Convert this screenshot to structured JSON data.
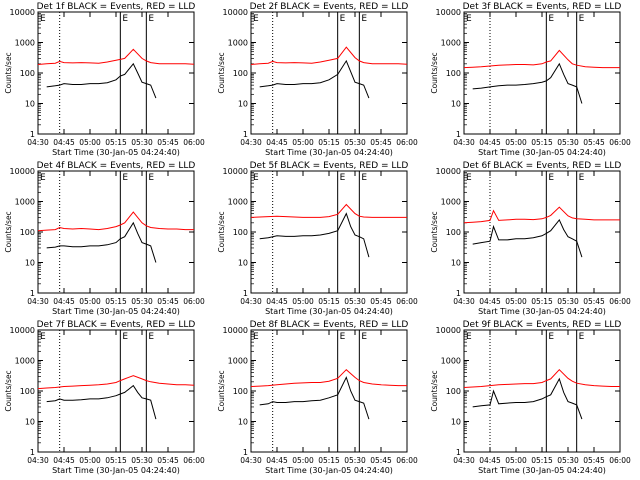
{
  "colors": {
    "events": "#000000",
    "lld": "#ff0000",
    "axis": "#000000"
  },
  "shared": {
    "ylabel": "Counts/sec",
    "xlabel": "Start Time (30-Jan-05 04:24:40)",
    "x_tick_labels": [
      "04:30",
      "04:45",
      "05:00",
      "05:15",
      "05:30",
      "05:45",
      "06:00"
    ],
    "y_tick_labels": [
      "1",
      "10",
      "100",
      "1000",
      "10000"
    ],
    "xlim_minutes_after_0430": [
      0,
      90
    ],
    "ylim": [
      1,
      10000
    ],
    "yscale": "log",
    "grid": false,
    "marker_letters": [
      "E",
      "E"
    ]
  },
  "chart_data": [
    {
      "type": "line",
      "title": "Det 1f BLACK = Events, RED = LLD",
      "vlines": {
        "dotted": 12.5,
        "solid": [
          47.5,
          62.5
        ]
      },
      "series": [
        {
          "color": "red",
          "x": [
            0,
            5,
            10,
            12.5,
            15,
            20,
            25,
            30,
            35,
            40,
            45,
            47.5,
            50,
            55,
            60,
            62.5,
            65,
            70,
            75,
            80,
            85,
            90
          ],
          "y": [
            190,
            200,
            210,
            240,
            220,
            215,
            220,
            215,
            210,
            230,
            260,
            280,
            300,
            600,
            300,
            250,
            220,
            200,
            200,
            200,
            200,
            195
          ]
        },
        {
          "color": "black",
          "x": [
            5,
            10,
            12.5,
            15,
            20,
            25,
            30,
            35,
            40,
            45,
            47.5,
            50,
            55,
            57.5,
            60,
            62.5,
            65,
            68
          ],
          "y": [
            35,
            38,
            40,
            45,
            42,
            42,
            45,
            45,
            48,
            60,
            80,
            90,
            200,
            100,
            50,
            45,
            40,
            15
          ]
        }
      ]
    },
    {
      "type": "line",
      "title": "Det 2f BLACK = Events, RED = LLD",
      "vlines": {
        "dotted": 12.5,
        "solid": [
          50,
          62.5
        ]
      },
      "series": [
        {
          "color": "red",
          "x": [
            0,
            5,
            10,
            12.5,
            15,
            20,
            25,
            30,
            35,
            40,
            45,
            50,
            55,
            60,
            62.5,
            65,
            70,
            75,
            80,
            85,
            90
          ],
          "y": [
            190,
            200,
            210,
            240,
            220,
            215,
            220,
            215,
            210,
            230,
            260,
            300,
            700,
            320,
            250,
            220,
            200,
            200,
            200,
            200,
            195
          ]
        },
        {
          "color": "black",
          "x": [
            5,
            10,
            12.5,
            15,
            20,
            25,
            30,
            35,
            40,
            45,
            50,
            55,
            57.5,
            60,
            62.5,
            65,
            68
          ],
          "y": [
            35,
            38,
            40,
            45,
            42,
            42,
            45,
            45,
            48,
            60,
            90,
            250,
            110,
            50,
            45,
            40,
            15
          ]
        }
      ]
    },
    {
      "type": "line",
      "title": "Det 3f BLACK = Events, RED = LLD",
      "vlines": {
        "dotted": 15,
        "solid": [
          47.5,
          65
        ]
      },
      "series": [
        {
          "color": "red",
          "x": [
            0,
            5,
            10,
            15,
            20,
            25,
            30,
            35,
            40,
            45,
            47.5,
            50,
            55,
            60,
            62.5,
            65,
            70,
            75,
            80,
            85,
            90
          ],
          "y": [
            150,
            155,
            160,
            170,
            180,
            185,
            190,
            190,
            185,
            200,
            230,
            250,
            550,
            270,
            200,
            180,
            160,
            155,
            150,
            150,
            150
          ]
        },
        {
          "color": "black",
          "x": [
            5,
            10,
            15,
            20,
            25,
            30,
            35,
            40,
            45,
            47.5,
            50,
            55,
            57.5,
            60,
            62.5,
            65,
            68
          ],
          "y": [
            30,
            32,
            35,
            38,
            40,
            40,
            42,
            45,
            50,
            55,
            70,
            200,
            90,
            45,
            40,
            35,
            10
          ]
        }
      ]
    },
    {
      "type": "line",
      "title": "Det 4f BLACK = Events, RED = LLD",
      "vlines": {
        "dotted": 12.5,
        "solid": [
          47.5,
          62.5
        ]
      },
      "series": [
        {
          "color": "red",
          "x": [
            0,
            5,
            10,
            12.5,
            15,
            20,
            25,
            30,
            35,
            40,
            45,
            47.5,
            50,
            55,
            60,
            62.5,
            65,
            70,
            75,
            80,
            85,
            90
          ],
          "y": [
            110,
            115,
            120,
            140,
            130,
            125,
            130,
            125,
            120,
            130,
            150,
            170,
            200,
            450,
            200,
            160,
            140,
            130,
            125,
            125,
            120,
            120
          ]
        },
        {
          "color": "black",
          "x": [
            5,
            10,
            12.5,
            15,
            20,
            25,
            30,
            35,
            40,
            45,
            47.5,
            50,
            55,
            57.5,
            60,
            62.5,
            65,
            68
          ],
          "y": [
            30,
            32,
            35,
            35,
            33,
            33,
            35,
            35,
            38,
            45,
            60,
            70,
            200,
            90,
            45,
            40,
            35,
            10
          ]
        }
      ]
    },
    {
      "type": "line",
      "title": "Det 5f BLACK = Events, RED = LLD",
      "vlines": {
        "dotted": 12.5,
        "solid": [
          50,
          62.5
        ]
      },
      "series": [
        {
          "color": "red",
          "x": [
            0,
            5,
            10,
            15,
            20,
            25,
            30,
            35,
            40,
            45,
            50,
            55,
            60,
            62.5,
            65,
            70,
            75,
            80,
            85,
            90
          ],
          "y": [
            300,
            310,
            320,
            330,
            320,
            310,
            300,
            300,
            300,
            320,
            380,
            800,
            400,
            330,
            310,
            300,
            300,
            300,
            300,
            300
          ]
        },
        {
          "color": "black",
          "x": [
            5,
            10,
            12.5,
            15,
            20,
            25,
            30,
            35,
            40,
            45,
            50,
            55,
            57.5,
            60,
            62.5,
            65,
            68
          ],
          "y": [
            60,
            65,
            70,
            75,
            72,
            72,
            75,
            75,
            80,
            90,
            110,
            400,
            150,
            80,
            70,
            60,
            15
          ]
        }
      ]
    },
    {
      "type": "line",
      "title": "Det 6f BLACK = Events, RED = LLD",
      "vlines": {
        "dotted": 15,
        "solid": [
          47.5,
          65
        ]
      },
      "series": [
        {
          "color": "red",
          "x": [
            0,
            5,
            10,
            15,
            17,
            20,
            25,
            30,
            35,
            40,
            45,
            47.5,
            50,
            55,
            60,
            62.5,
            65,
            70,
            75,
            80,
            85,
            90
          ],
          "y": [
            200,
            210,
            220,
            240,
            500,
            240,
            250,
            260,
            260,
            255,
            270,
            300,
            350,
            650,
            340,
            290,
            270,
            260,
            250,
            250,
            250,
            250
          ]
        },
        {
          "color": "black",
          "x": [
            5,
            10,
            15,
            17,
            20,
            25,
            30,
            35,
            40,
            45,
            47.5,
            50,
            55,
            57.5,
            60,
            62.5,
            65,
            68
          ],
          "y": [
            40,
            45,
            50,
            150,
            55,
            55,
            60,
            60,
            65,
            75,
            90,
            110,
            250,
            120,
            70,
            60,
            50,
            15
          ]
        }
      ]
    },
    {
      "type": "line",
      "title": "Det 7f BLACK = Events, RED = LLD",
      "vlines": {
        "dotted": 12.5,
        "solid": [
          47.5,
          62.5
        ]
      },
      "series": [
        {
          "color": "red",
          "x": [
            0,
            5,
            10,
            15,
            20,
            25,
            30,
            35,
            40,
            45,
            47.5,
            50,
            55,
            60,
            62.5,
            65,
            70,
            75,
            80,
            85,
            90
          ],
          "y": [
            120,
            125,
            130,
            140,
            145,
            150,
            155,
            160,
            170,
            190,
            220,
            250,
            320,
            250,
            220,
            200,
            180,
            170,
            160,
            160,
            155
          ]
        },
        {
          "color": "black",
          "x": [
            5,
            10,
            12.5,
            15,
            20,
            25,
            30,
            35,
            40,
            45,
            47.5,
            50,
            55,
            57.5,
            60,
            62.5,
            65,
            68
          ],
          "y": [
            45,
            48,
            55,
            50,
            50,
            52,
            55,
            55,
            60,
            70,
            80,
            90,
            150,
            90,
            60,
            55,
            50,
            12
          ]
        }
      ]
    },
    {
      "type": "line",
      "title": "Det 8f BLACK = Events, RED = LLD",
      "vlines": {
        "dotted": 12.5,
        "solid": [
          50,
          62.5
        ]
      },
      "series": [
        {
          "color": "red",
          "x": [
            0,
            5,
            10,
            15,
            20,
            25,
            30,
            35,
            40,
            45,
            50,
            55,
            60,
            62.5,
            65,
            70,
            75,
            80,
            85,
            90
          ],
          "y": [
            140,
            145,
            150,
            160,
            170,
            180,
            185,
            190,
            190,
            210,
            260,
            500,
            280,
            220,
            190,
            170,
            160,
            155,
            150,
            150
          ]
        },
        {
          "color": "black",
          "x": [
            5,
            10,
            12.5,
            15,
            20,
            25,
            30,
            35,
            40,
            45,
            50,
            55,
            57.5,
            60,
            62.5,
            65,
            68
          ],
          "y": [
            35,
            38,
            45,
            42,
            42,
            45,
            45,
            48,
            50,
            60,
            75,
            280,
            100,
            50,
            45,
            40,
            12
          ]
        }
      ]
    },
    {
      "type": "line",
      "title": "Det 9f BLACK = Events, RED = LLD",
      "vlines": {
        "dotted": 15,
        "solid": [
          47.5,
          65
        ]
      },
      "series": [
        {
          "color": "red",
          "x": [
            0,
            5,
            10,
            15,
            20,
            25,
            30,
            35,
            40,
            45,
            47.5,
            50,
            55,
            60,
            62.5,
            65,
            70,
            75,
            80,
            85,
            90
          ],
          "y": [
            130,
            135,
            140,
            150,
            160,
            165,
            170,
            175,
            175,
            190,
            220,
            250,
            500,
            260,
            210,
            180,
            160,
            150,
            145,
            140,
            140
          ]
        },
        {
          "color": "black",
          "x": [
            5,
            10,
            15,
            17,
            20,
            25,
            30,
            35,
            40,
            45,
            47.5,
            50,
            55,
            57.5,
            60,
            62.5,
            65,
            68
          ],
          "y": [
            30,
            33,
            35,
            100,
            38,
            40,
            42,
            42,
            45,
            55,
            65,
            75,
            250,
            90,
            45,
            40,
            35,
            12
          ]
        }
      ]
    }
  ]
}
